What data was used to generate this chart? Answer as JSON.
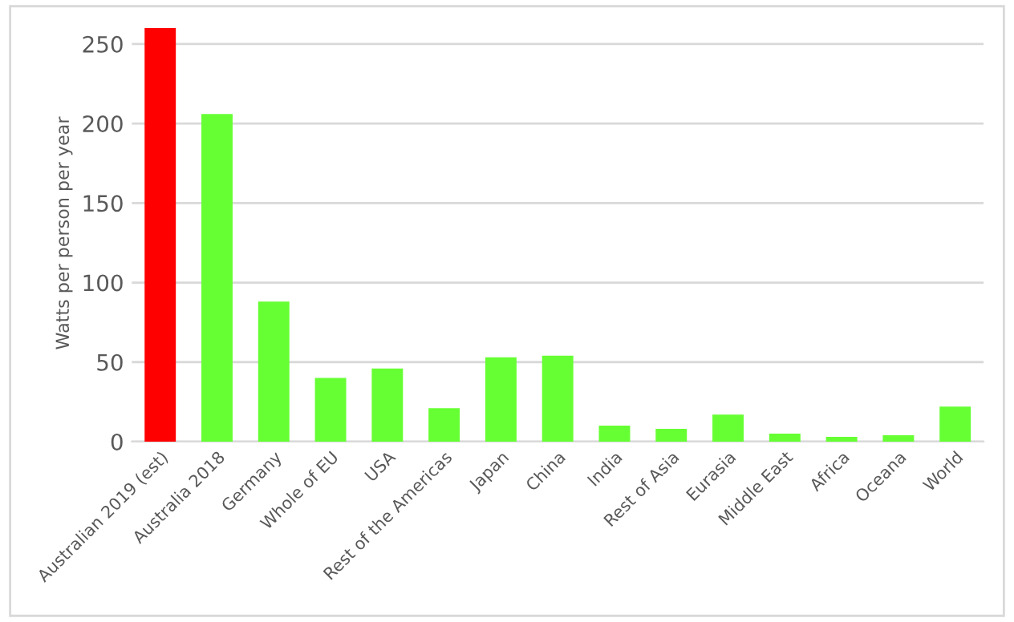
{
  "chart_data": {
    "type": "bar",
    "ylabel": "Watts per person per year",
    "categories": [
      "Australian 2019 (est)",
      "Australia 2018",
      "Germany",
      "Whole of EU",
      "USA",
      "Rest of the Americas",
      "Japan",
      "China",
      "India",
      "Rest of Asia",
      "Eurasia",
      "Middle East",
      "Africa",
      "Oceana",
      "World"
    ],
    "values": [
      260,
      206,
      88,
      40,
      46,
      21,
      53,
      54,
      10,
      8,
      17,
      5,
      3,
      4,
      22
    ],
    "colors": [
      "#ff0000",
      "#66ff33",
      "#66ff33",
      "#66ff33",
      "#66ff33",
      "#66ff33",
      "#66ff33",
      "#66ff33",
      "#66ff33",
      "#66ff33",
      "#66ff33",
      "#66ff33",
      "#66ff33",
      "#66ff33",
      "#66ff33"
    ],
    "ylim": [
      0,
      262
    ],
    "yticks": [
      0,
      50,
      100,
      150,
      200,
      250
    ],
    "grid": "y",
    "legend": false
  }
}
